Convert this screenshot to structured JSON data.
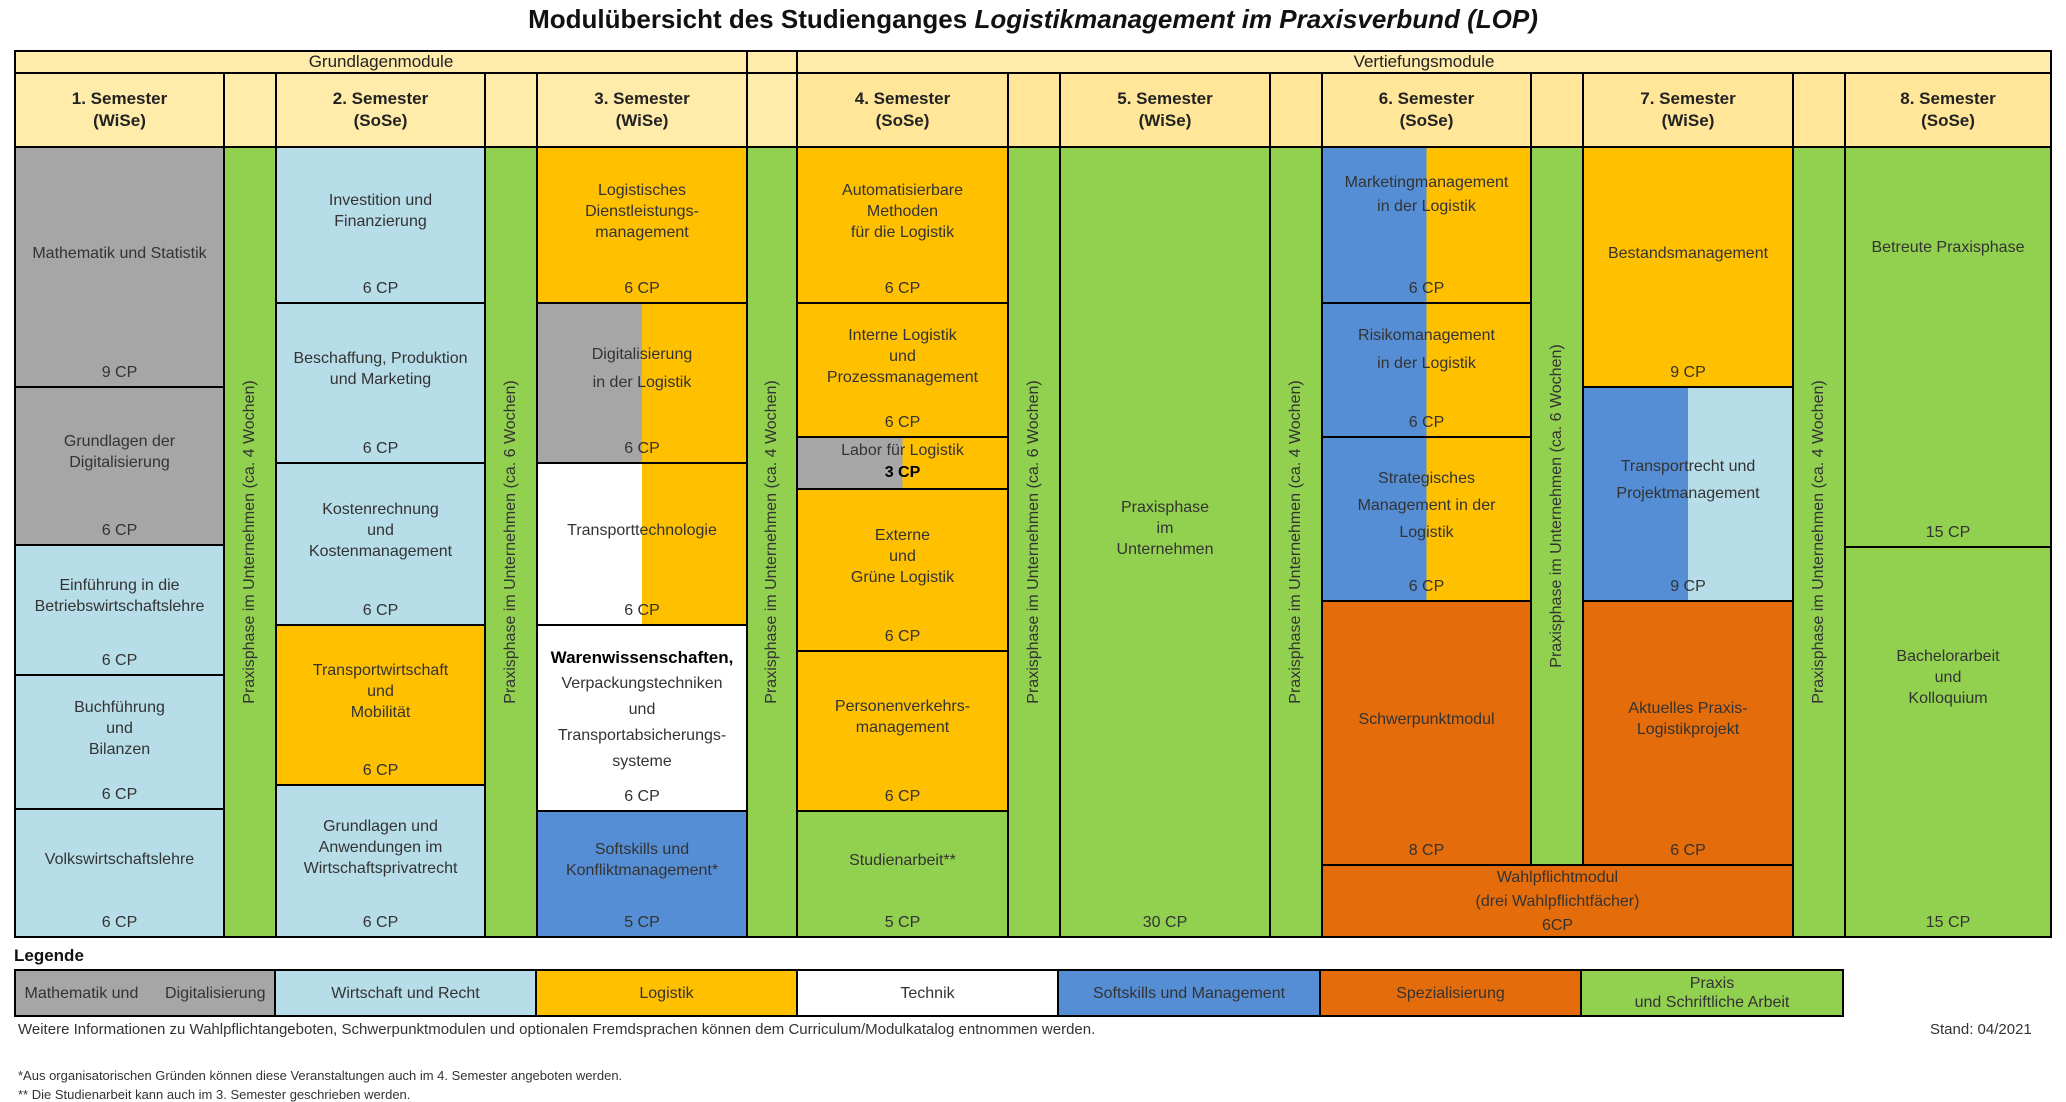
{
  "title": {
    "prefix": "Modulübersicht des Studienganges ",
    "italic": "Logistikmanagement im Praxisverbund (LOP)"
  },
  "groups": {
    "basic": "Grundlagenmodule",
    "advanced": "Vertiefungsmodule"
  },
  "semesters": [
    {
      "name": "1. Semester",
      "term": "(WiSe)"
    },
    {
      "name": "2. Semester",
      "term": "(SoSe)"
    },
    {
      "name": "3. Semester",
      "term": "(WiSe)"
    },
    {
      "name": "4. Semester",
      "term": "(SoSe)"
    },
    {
      "name": "5. Semester",
      "term": "(WiSe)"
    },
    {
      "name": "6. Semester",
      "term": "(SoSe)"
    },
    {
      "name": "7. Semester",
      "term": "(WiSe)"
    },
    {
      "name": "8. Semester",
      "term": "(SoSe)"
    }
  ],
  "practice_phases": [
    "Praxisphase im Unternehmen (ca. 4 Wochen)",
    "Praxisphase im Unternehmen (ca. 6 Wochen)",
    "Praxisphase im Unternehmen (ca. 4 Wochen)",
    "Praxisphase im Unternehmen (ca. 6 Wochen)",
    "Praxisphase im Unternehmen (ca. 4 Wochen)",
    "Praxisphase im Unternehmen (ca. 6 Wochen)",
    "Praxisphase im Unternehmen (ca. 4 Wochen)"
  ],
  "modules": {
    "s1": [
      {
        "l1": "Mathematik und Statistik",
        "l2": "",
        "l3": "",
        "cp": "9 CP"
      },
      {
        "l1": "Grundlagen der",
        "l2": "Digitalisierung",
        "l3": "",
        "cp": "6 CP"
      },
      {
        "l1": "Einführung in die",
        "l2": "Betriebswirtschaftslehre",
        "l3": "",
        "cp": "6 CP"
      },
      {
        "l1": "Buchführung",
        "l2": "und",
        "l3": "Bilanzen",
        "cp": "6 CP"
      },
      {
        "l1": "Volkswirtschaftslehre",
        "l2": "",
        "l3": "",
        "cp": "6 CP"
      }
    ],
    "s2": [
      {
        "l1": "Investition und",
        "l2": "Finanzierung",
        "l3": "",
        "cp": "6 CP"
      },
      {
        "l1": "Beschaffung, Produktion",
        "l2": "und Marketing",
        "l3": "",
        "cp": "6 CP"
      },
      {
        "l1": "Kostenrechnung",
        "l2": "und",
        "l3": "Kostenmanagement",
        "cp": "6 CP"
      },
      {
        "l1": "Transportwirtschaft",
        "l2": "und",
        "l3": "Mobilität",
        "cp": "6 CP"
      },
      {
        "l1": "Grundlagen und",
        "l2": "Anwendungen im",
        "l3": "Wirtschaftsprivatrecht",
        "cp": "6 CP"
      }
    ],
    "s3": [
      {
        "l1": "Logistisches",
        "l2": "Dienstleistungs-",
        "l3": "management",
        "cp": "6 CP"
      },
      {
        "l1": "Digitalisierung",
        "l2": "in der Logistik",
        "l3": "",
        "cp": "6 CP"
      },
      {
        "l1": "Transporttechnologie",
        "l2": "",
        "l3": "",
        "cp": "6 CP"
      },
      {
        "l1": "Warenwissenschaften,",
        "l2": "Verpackungstechniken",
        "l3": "und",
        "l4": "Transportabsicherungs-",
        "l5": "systeme",
        "cp": "6 CP"
      },
      {
        "l1": "Softskills und",
        "l2": "Konfliktmanagement*",
        "l3": "",
        "cp": "5 CP"
      }
    ],
    "s4": [
      {
        "l1": "Automatisierbare",
        "l2": "Methoden",
        "l3": "für die Logistik",
        "cp": "6 CP"
      },
      {
        "l1": "Interne Logistik",
        "l2": "und",
        "l3": "Prozessmanagement",
        "cp": "6 CP"
      },
      {
        "l1": "Labor für Logistik",
        "l2": "",
        "l3": "",
        "cp": "3 CP"
      },
      {
        "l1": "Externe",
        "l2": "und",
        "l3": "Grüne Logistik",
        "cp": "6 CP"
      },
      {
        "l1": "Personenverkehrs-",
        "l2": "management",
        "l3": "",
        "cp": "6 CP"
      },
      {
        "l1": "Studienarbeit**",
        "l2": "",
        "l3": "",
        "cp": "5 CP"
      }
    ],
    "s5": [
      {
        "l1": "Praxisphase",
        "l2": "im",
        "l3": "Unternehmen",
        "cp": "30 CP"
      }
    ],
    "s6": [
      {
        "l1": "Marketingmanagement",
        "l2": "in der Logistik",
        "l3": "",
        "cp": "6 CP"
      },
      {
        "l1": "Risikomanagement",
        "l2": "in der Logistik",
        "l3": "",
        "cp": "6 CP"
      },
      {
        "l1": "Strategisches",
        "l2": "Management in der",
        "l3": "Logistik",
        "cp": "6 CP"
      },
      {
        "l1": "Schwerpunktmodul",
        "l2": "",
        "l3": "",
        "cp": "8 CP"
      }
    ],
    "s7": [
      {
        "l1": "Bestandsmanagement",
        "l2": "",
        "l3": "",
        "cp": "9 CP"
      },
      {
        "l1": "Transportrecht und",
        "l2": "Projektmanagement",
        "l3": "",
        "cp": "9 CP"
      },
      {
        "l1": "Aktuelles Praxis-",
        "l2": "Logistikprojekt",
        "l3": "",
        "cp": "6 CP"
      }
    ],
    "wahl": {
      "l1": "Wahlpflichtmodul",
      "l2": "(drei Wahlpflichtfächer)",
      "cp": "6CP"
    },
    "s8": [
      {
        "l1": "Betreute Praxisphase",
        "l2": "",
        "l3": "",
        "cp": "15 CP"
      },
      {
        "l1": "Bachelorarbeit",
        "l2": "und",
        "l3": "Kolloquium",
        "cp": "15 CP"
      }
    ]
  },
  "legend": {
    "heading": "Legende",
    "items": [
      {
        "label": "Mathematik und      Digitalisierung",
        "color": "#a6a6a6"
      },
      {
        "label": "Wirtschaft und Recht",
        "color": "#b7dde8"
      },
      {
        "label": "Logistik",
        "color": "#ffc000"
      },
      {
        "label": "Technik",
        "color": "#ffffff"
      },
      {
        "label": "Softskills und Management",
        "color": "#558ed5"
      },
      {
        "label": "Spezialisierung",
        "color": "#e46c0a"
      },
      {
        "label": "Praxis",
        "label2": "und Schriftliche Arbeit",
        "color": "#92d050"
      }
    ]
  },
  "notes": {
    "info": "Weitere Informationen zu Wahlpflichtangeboten, Schwerpunktmodulen und optionalen Fremdsprachen können dem Curriculum/Modulkatalog entnommen werden.",
    "stand": "Stand: 04/2021",
    "fn1": "*Aus organisatorischen Gründen können diese Veranstaltungen auch im 4. Semester angeboten werden.",
    "fn2": "** Die Studienarbeit kann auch im 3. Semester geschrieben werden."
  }
}
